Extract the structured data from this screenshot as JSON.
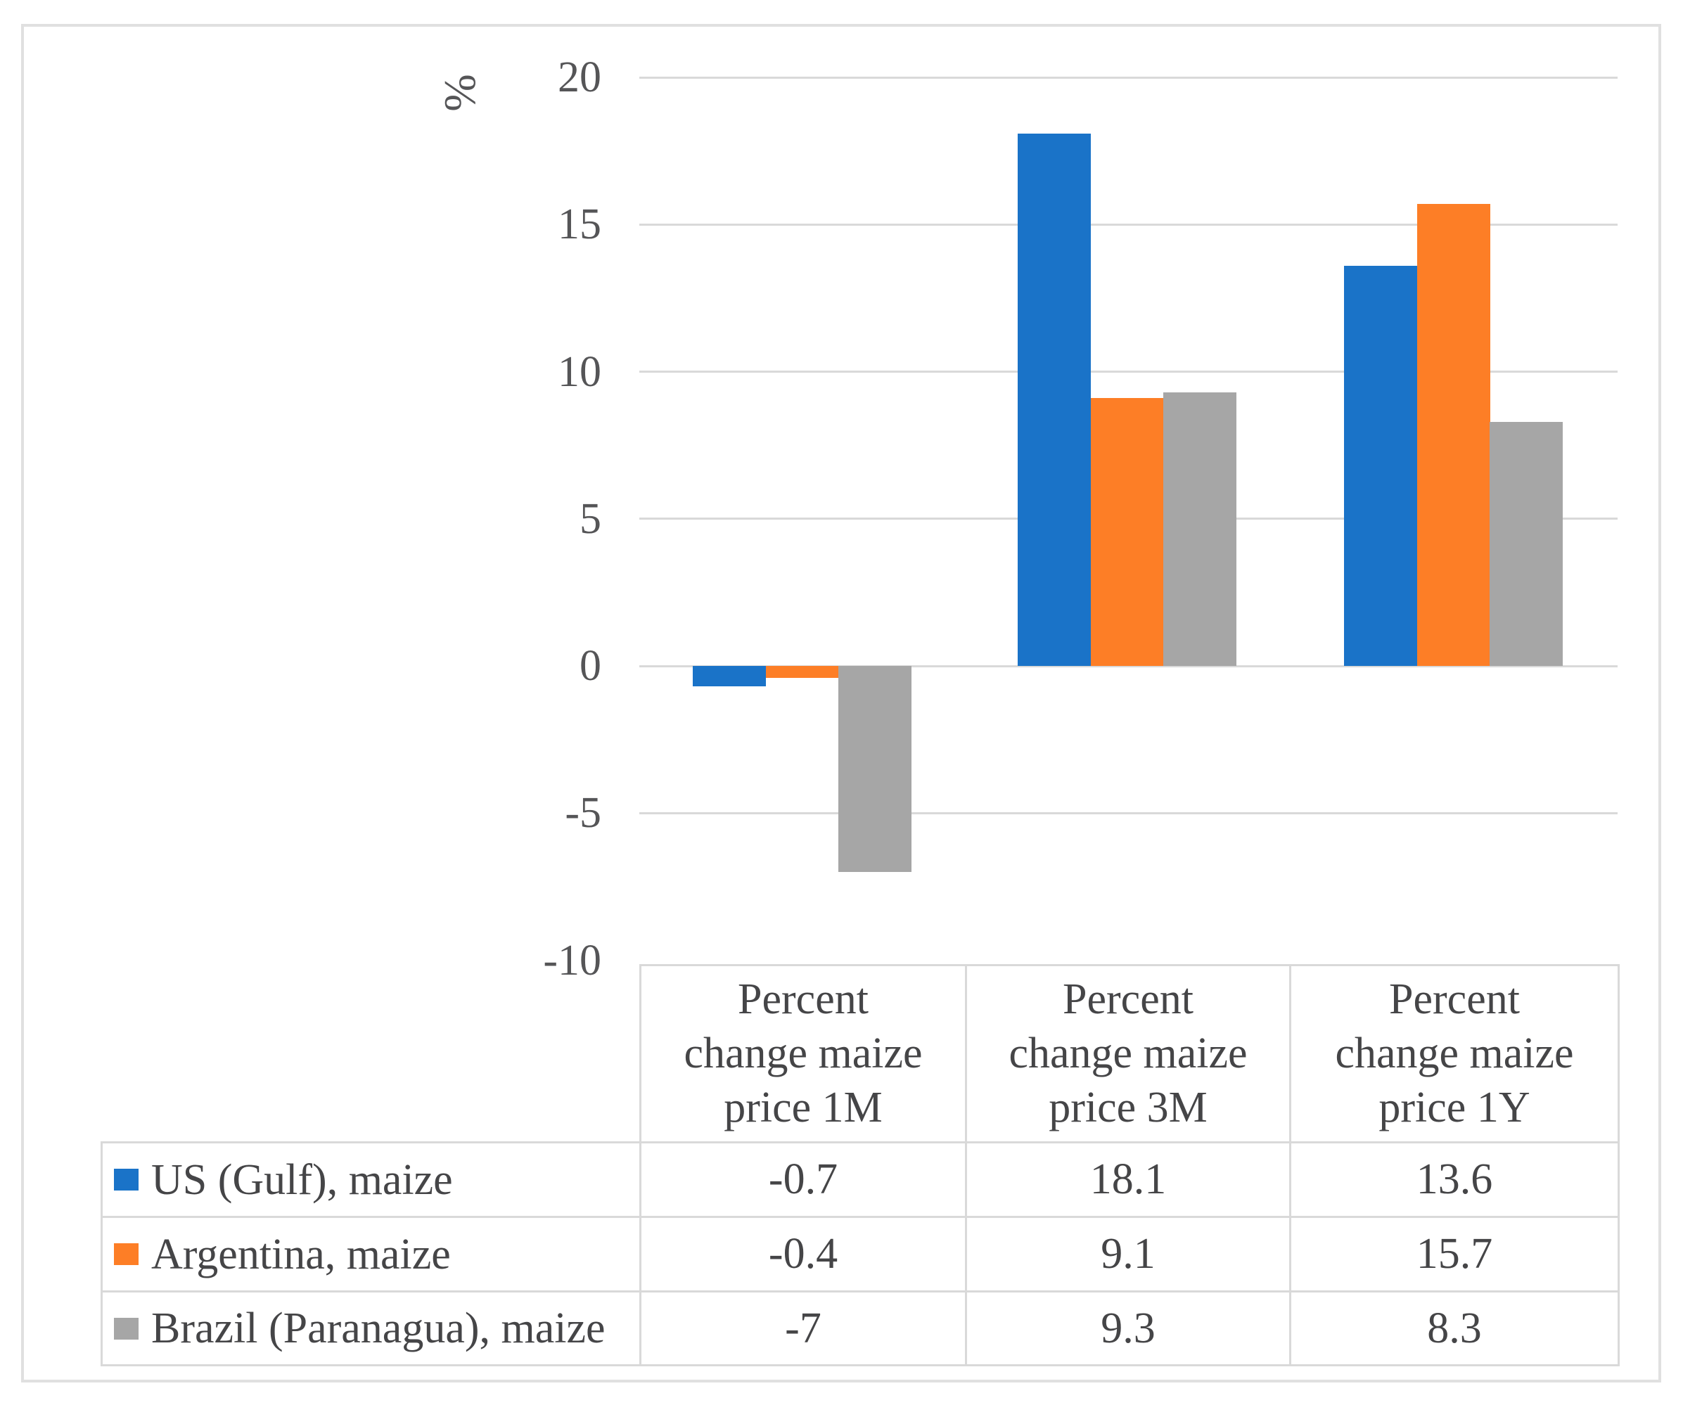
{
  "chart_data": {
    "type": "bar",
    "title": "",
    "unit_label": "%",
    "ylabel": "%",
    "xlabel": "",
    "ylim": [
      -10,
      20
    ],
    "yticks": [
      20,
      15,
      10,
      5,
      0,
      -5,
      -10
    ],
    "gridlines": true,
    "legend_position": "table-left",
    "categories": [
      {
        "label": "Percent change maize price 1M",
        "lines": [
          "Percent",
          "change maize",
          "price 1M"
        ]
      },
      {
        "label": "Percent change maize price 3M",
        "lines": [
          "Percent",
          "change maize",
          "price 3M"
        ]
      },
      {
        "label": "Percent change maize price 1Y",
        "lines": [
          "Percent",
          "change maize",
          "price 1Y"
        ]
      }
    ],
    "series": [
      {
        "name": "US (Gulf), maize",
        "color": "#1a73c8",
        "values": [
          -0.7,
          18.1,
          13.6
        ]
      },
      {
        "name": "Argentina, maize",
        "color": "#fd7e26",
        "values": [
          -0.4,
          9.1,
          15.7
        ]
      },
      {
        "name": "Brazil (Paranagua), maize",
        "color": "#a6a6a6",
        "values": [
          -7,
          9.3,
          8.3
        ]
      }
    ],
    "colors": {
      "gridline": "#d9d9d9",
      "frame_border": "#e0e0e0",
      "text": "#4d4d4f"
    }
  }
}
